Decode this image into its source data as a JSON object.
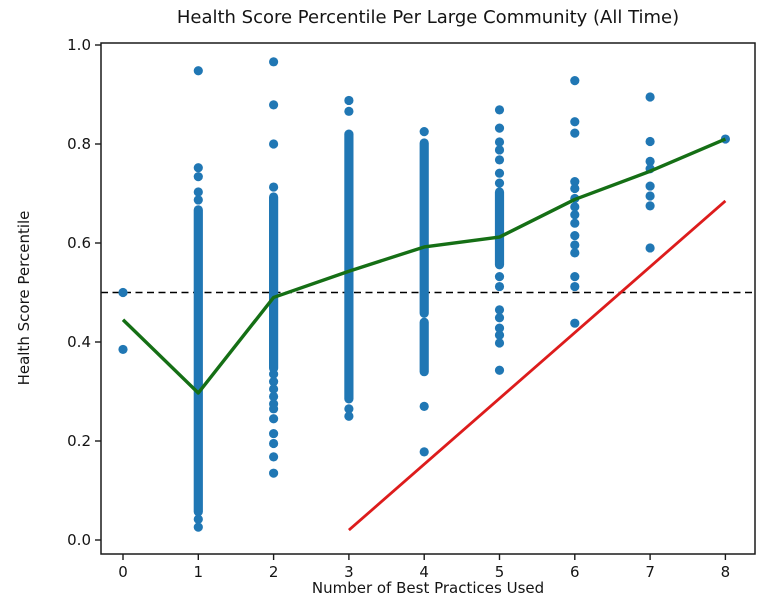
{
  "chart_data": {
    "type": "scatter",
    "title": "Health Score Percentile Per Large Community (All Time)",
    "xlabel": "Number of Best Practices Used",
    "ylabel": "Health Score Percentile",
    "x_ticks": [
      0,
      1,
      2,
      3,
      4,
      5,
      6,
      7,
      8
    ],
    "x_tick_labels": [
      "0",
      "1",
      "2",
      "3",
      "4",
      "5",
      "6",
      "7",
      "8"
    ],
    "y_ticks": [
      0.0,
      0.2,
      0.4,
      0.6,
      0.8,
      1.0
    ],
    "y_tick_labels": [
      "0.0",
      "0.2",
      "0.4",
      "0.6",
      "0.8",
      "1.0"
    ],
    "xlim": [
      -0.29,
      8.39
    ],
    "ylim": [
      -0.028,
      1.004
    ],
    "grid": false,
    "legend": null,
    "colors": {
      "scatter": "#2077b4",
      "trend": "#156f15",
      "reference": "#dd1c1c",
      "median": "#000000"
    },
    "scatter_columns": [
      {
        "x": 0,
        "dots": [
          0.5,
          0.385
        ],
        "dense_ranges": []
      },
      {
        "x": 1,
        "dots": [
          0.948,
          0.752,
          0.734,
          0.703,
          0.687,
          0.042,
          0.026
        ],
        "dense_ranges": [
          [
            0.057,
            0.667
          ]
        ]
      },
      {
        "x": 2,
        "dots": [
          0.966,
          0.879,
          0.8,
          0.713,
          0.335,
          0.32,
          0.305,
          0.29,
          0.275,
          0.265,
          0.245,
          0.215,
          0.195,
          0.168,
          0.135
        ],
        "dense_ranges": [
          [
            0.347,
            0.693
          ]
        ]
      },
      {
        "x": 3,
        "dots": [
          0.888,
          0.866,
          0.265,
          0.25
        ],
        "dense_ranges": [
          [
            0.285,
            0.82
          ]
        ]
      },
      {
        "x": 4,
        "dots": [
          0.825,
          0.27,
          0.178
        ],
        "dense_ranges": [
          [
            0.458,
            0.802
          ],
          [
            0.34,
            0.44
          ]
        ]
      },
      {
        "x": 5,
        "dots": [
          0.869,
          0.832,
          0.804,
          0.788,
          0.768,
          0.741,
          0.721,
          0.532,
          0.512,
          0.465,
          0.449,
          0.428,
          0.414,
          0.398,
          0.343
        ],
        "dense_ranges": [
          [
            0.556,
            0.703
          ]
        ]
      },
      {
        "x": 6,
        "dots": [
          0.928,
          0.845,
          0.822,
          0.724,
          0.71,
          0.69,
          0.673,
          0.657,
          0.64,
          0.615,
          0.596,
          0.58,
          0.532,
          0.512,
          0.438
        ],
        "dense_ranges": []
      },
      {
        "x": 7,
        "dots": [
          0.895,
          0.805,
          0.765,
          0.75,
          0.715,
          0.695,
          0.675,
          0.59
        ],
        "dense_ranges": []
      },
      {
        "x": 8,
        "dots": [
          0.81
        ],
        "dense_ranges": []
      }
    ],
    "trend_line": {
      "name": "mean health score per best-practice count",
      "points": [
        [
          0,
          0.445
        ],
        [
          1,
          0.297
        ],
        [
          2,
          0.49
        ],
        [
          3,
          0.543
        ],
        [
          4,
          0.592
        ],
        [
          5,
          0.612
        ],
        [
          6,
          0.688
        ],
        [
          7,
          0.745
        ],
        [
          8,
          0.81
        ]
      ]
    },
    "reference_line": {
      "name": "diagonal reference line",
      "points": [
        [
          3,
          0.02
        ],
        [
          8,
          0.685
        ]
      ]
    },
    "median_hline": {
      "y": 0.5,
      "style": "dashed"
    }
  }
}
